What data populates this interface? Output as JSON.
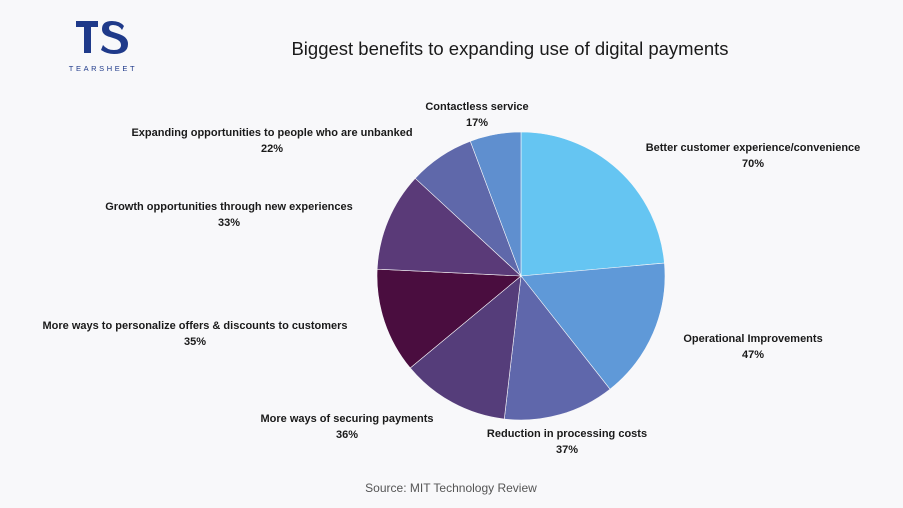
{
  "logo": {
    "mark": "TS",
    "wordmark": "TEARSHEET"
  },
  "chart_data": {
    "type": "pie",
    "title": "Biggest benefits to expanding use of digital payments",
    "source": "Source: MIT Technology Review",
    "categories": [
      "Better customer experience/convenience",
      "Operational Improvements",
      "Reduction in processing costs",
      "More ways of securing payments",
      "More ways to personalize offers & discounts to customers",
      "Growth opportunities through new experiences",
      "Expanding opportunities to people who are unbanked",
      "Contactless service"
    ],
    "values": [
      70,
      47,
      37,
      36,
      35,
      33,
      22,
      17
    ],
    "value_labels": [
      "70%",
      "47%",
      "37%",
      "36%",
      "35%",
      "33%",
      "22%",
      "17%"
    ],
    "colors": [
      "#65c5f2",
      "#5f99d8",
      "#5f67ab",
      "#553d7a",
      "#4a0d3f",
      "#5a3a78",
      "#5f68aa",
      "#5f8fcf"
    ],
    "start": "12 o'clock",
    "direction": "clockwise"
  }
}
